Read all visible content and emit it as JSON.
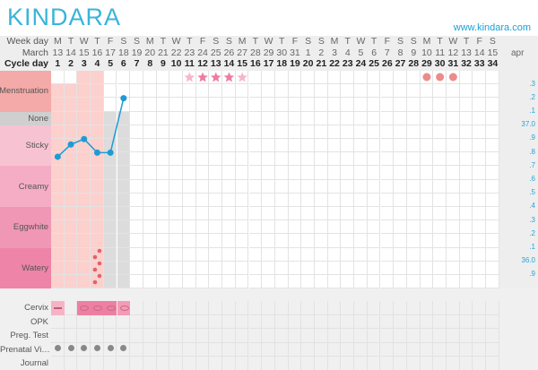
{
  "app": {
    "logo": "KINDARA",
    "url": "www.kindara.com"
  },
  "header": {
    "weekday_label": "Week day",
    "month_label": "March",
    "cycle_label": "Cycle day",
    "next_month": "apr",
    "weekdays": [
      "M",
      "T",
      "W",
      "T",
      "F",
      "S",
      "S",
      "M",
      "T",
      "W",
      "T",
      "F",
      "S",
      "S",
      "M",
      "T",
      "W",
      "T",
      "F",
      "S",
      "S",
      "M",
      "T",
      "W",
      "T",
      "F",
      "S",
      "S",
      "M",
      "T",
      "W",
      "T",
      "F",
      "S"
    ],
    "dates": [
      "13",
      "14",
      "15",
      "16",
      "17",
      "18",
      "19",
      "20",
      "21",
      "22",
      "23",
      "24",
      "25",
      "26",
      "27",
      "28",
      "29",
      "30",
      "31",
      "1",
      "2",
      "3",
      "4",
      "5",
      "6",
      "7",
      "8",
      "9",
      "10",
      "11",
      "12",
      "13",
      "14",
      "15"
    ],
    "cycle_days": [
      "1",
      "2",
      "3",
      "4",
      "5",
      "6",
      "7",
      "8",
      "9",
      "10",
      "11",
      "12",
      "13",
      "14",
      "15",
      "16",
      "17",
      "18",
      "19",
      "20",
      "21",
      "22",
      "23",
      "24",
      "25",
      "26",
      "27",
      "28",
      "29",
      "30",
      "31",
      "32",
      "33",
      "34"
    ]
  },
  "bands": [
    {
      "label": "Menstruation",
      "color": "#f4aaa8"
    },
    {
      "label": "None",
      "color": "#cfcfcf"
    },
    {
      "label": "Sticky",
      "color": "#f7c3d3"
    },
    {
      "label": "Creamy",
      "color": "#f5adc5"
    },
    {
      "label": "Eggwhite",
      "color": "#f197b6"
    },
    {
      "label": "Watery",
      "color": "#ee84a7"
    }
  ],
  "temp_scale": [
    ".3",
    ".2",
    ".1",
    "37.0",
    ".9",
    ".8",
    ".7",
    ".6",
    ".5",
    ".4",
    ".3",
    ".2",
    ".1",
    "36.0",
    ".9"
  ],
  "temperatures": [
    {
      "day": 1,
      "value": 36.77
    },
    {
      "day": 2,
      "value": 36.86
    },
    {
      "day": 3,
      "value": 36.9
    },
    {
      "day": 4,
      "value": 36.8
    },
    {
      "day": 5,
      "value": 36.8
    },
    {
      "day": 6,
      "value": 37.2
    }
  ],
  "menstruation_days": [
    1,
    2,
    3,
    4
  ],
  "dry_days": [
    5,
    6
  ],
  "fertile_stars": [
    {
      "day": 11,
      "strength": "light"
    },
    {
      "day": 12,
      "strength": "strong"
    },
    {
      "day": 13,
      "strength": "strong"
    },
    {
      "day": 14,
      "strength": "strong"
    },
    {
      "day": 15,
      "strength": "light"
    }
  ],
  "predicted_period_days": [
    29,
    30,
    31
  ],
  "watery_spotting_day": 4,
  "sex_days": [
    4,
    6
  ],
  "bottom_rows": {
    "labels": [
      "Cervix",
      "OPK",
      "Preg. Test",
      "Prenatal Vi…",
      "Journal"
    ]
  },
  "cervix": [
    {
      "day": 1,
      "color": "#f7b3c6"
    },
    {
      "day": 3,
      "color": "#ef7fa2"
    },
    {
      "day": 4,
      "color": "#ef7fa2"
    },
    {
      "day": 5,
      "color": "#ef7fa2"
    },
    {
      "day": 6,
      "color": "#f59ab5"
    }
  ],
  "prenatal_days": [
    1,
    2,
    3,
    4,
    5,
    6
  ],
  "colors": {
    "accent": "#1a9fd6",
    "temp": "#1e9bd3",
    "heart": "#d9464e",
    "star_light": "#f4b6cf",
    "star_strong": "#ef7aa2",
    "period_dot": "#ec8b8b"
  }
}
